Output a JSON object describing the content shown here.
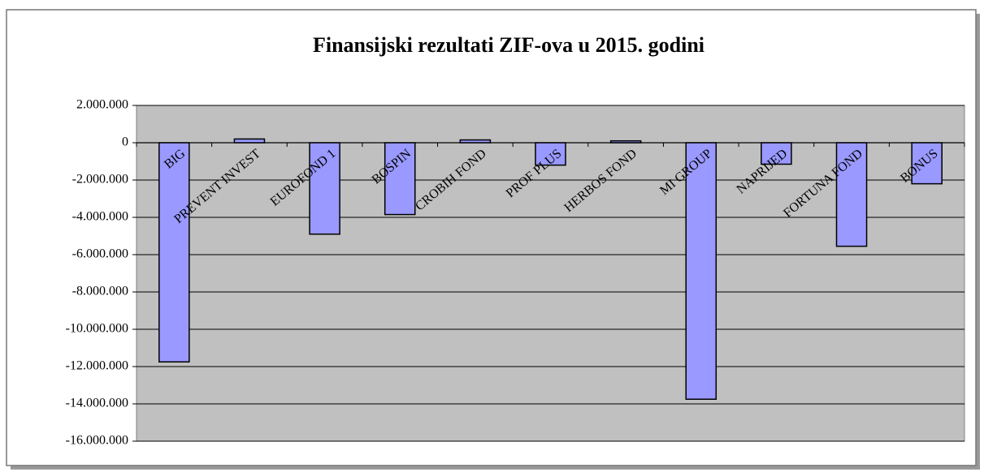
{
  "chart_data": {
    "type": "bar",
    "title": "Finansijski rezultati ZIF-ova u 2015. godini",
    "categories": [
      "BIG",
      "PREVENT INVEST",
      "EUROFOND 1",
      "BOSPIN",
      "CROBIH FOND",
      "PROF PLUS",
      "HERBOS FOND",
      "MI GROUP",
      "NAPRIJED",
      "FORTUNA FOND",
      "BONUS"
    ],
    "values": [
      -11750000,
      200000,
      -4900000,
      -3850000,
      150000,
      -1200000,
      100000,
      -13750000,
      -1150000,
      -5550000,
      -2200000
    ],
    "color": "#9999ff",
    "ylim": [
      -16000000,
      2000000
    ],
    "yticks": [
      {
        "value": 2000000,
        "label": "2.000.000"
      },
      0,
      {
        "value": -2000000,
        "label": "-2.000.000"
      },
      {
        "value": -4000000,
        "label": "-4.000.000"
      },
      {
        "value": -6000000,
        "label": "-6.000.000"
      },
      {
        "value": -8000000,
        "label": "-8.000.000"
      },
      {
        "value": -10000000,
        "label": "-10.000.000"
      },
      {
        "value": -12000000,
        "label": "-12.000.000"
      },
      {
        "value": -14000000,
        "label": "-14.000.000"
      },
      {
        "value": -16000000,
        "label": "-16.000.000"
      }
    ],
    "grid": true
  }
}
